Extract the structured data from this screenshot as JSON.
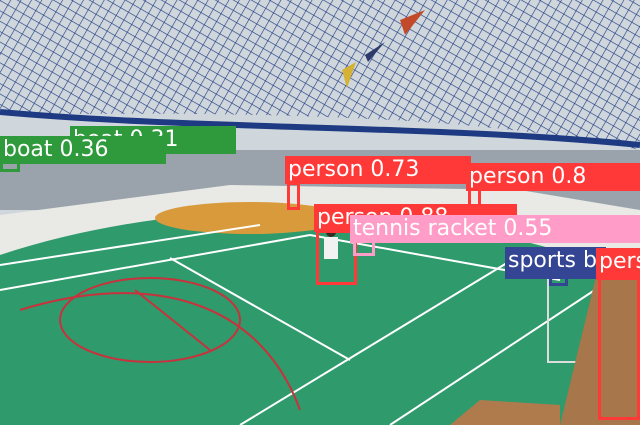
{
  "detections": [
    {
      "key": "boat1",
      "label": "boat",
      "score": "0.31",
      "color": "#2e9a3c"
    },
    {
      "key": "boat2",
      "label": "boat",
      "score": "0.36",
      "color": "#2e9a3c"
    },
    {
      "key": "p1",
      "label": "person",
      "score": "0.73",
      "color": "#ff3838"
    },
    {
      "key": "p2",
      "label": "person",
      "score": "0.8",
      "color": "#ff3838"
    },
    {
      "key": "p3",
      "label": "person",
      "score": "0.88",
      "color": "#ff3838"
    },
    {
      "key": "racket",
      "label": "tennis racket",
      "score": "0.55",
      "color": "#ff9dc8"
    },
    {
      "key": "ball",
      "label": "sports ball",
      "score": "",
      "color": "#344593"
    },
    {
      "key": "p4",
      "label": "person",
      "score": "",
      "color": "#ff3838"
    }
  ],
  "scene": {
    "court_color": "#2f9a6c",
    "net_color": "#1e3a82",
    "sky_color": "#cfd6dc",
    "sea_color": "#9aa3ab",
    "line_color": "#ffffff",
    "key_color": "#c8323c"
  }
}
